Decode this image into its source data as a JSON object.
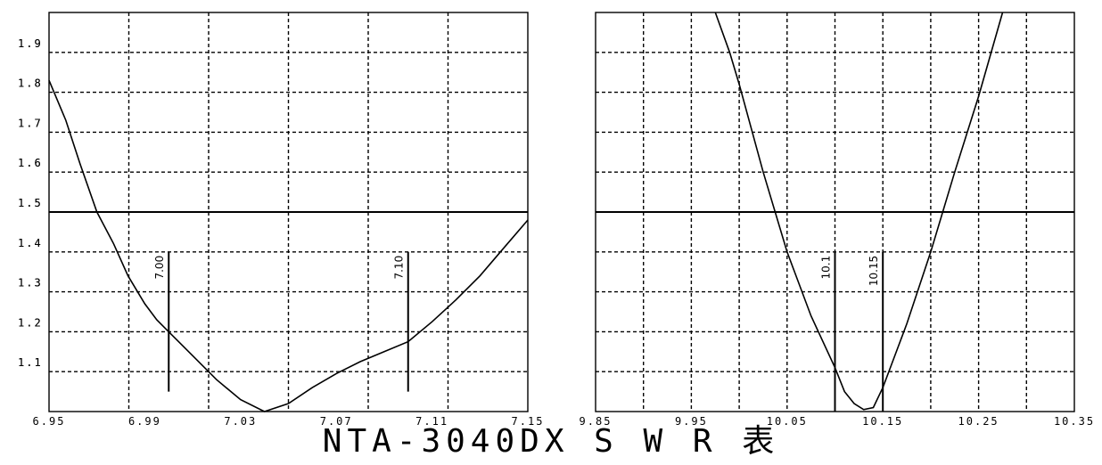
{
  "title": "NTA-3040DX  S W R 表",
  "chart_data": [
    {
      "type": "line",
      "xlim": [
        6.95,
        7.15
      ],
      "ylim": [
        1.0,
        2.0
      ],
      "x_ticks": [
        "6.95",
        "6.99",
        "7.03",
        "7.07",
        "7.11",
        "7.15"
      ],
      "y_ticks": [
        "1.1",
        "1.2",
        "1.3",
        "1.4",
        "1.5",
        "1.6",
        "1.7",
        "1.8",
        "1.9"
      ],
      "y_tick_values": [
        1.1,
        1.2,
        1.3,
        1.4,
        1.5,
        1.6,
        1.7,
        1.8,
        1.9
      ],
      "x_grid_divisions": 6,
      "y_grid_divisions": 9,
      "grid": "dashed",
      "reference_line": 1.5,
      "markers": [
        {
          "label": "7.00",
          "x": 7.0,
          "y_bottom": 1.05,
          "y_top": 1.4
        },
        {
          "label": "7.10",
          "x": 7.1,
          "y_bottom": 1.05,
          "y_top": 1.4
        }
      ],
      "series": [
        {
          "points": [
            [
              6.95,
              1.83
            ],
            [
              6.957,
              1.73
            ],
            [
              6.963,
              1.62
            ],
            [
              6.97,
              1.5
            ],
            [
              6.977,
              1.42
            ],
            [
              6.983,
              1.34
            ],
            [
              6.99,
              1.27
            ],
            [
              6.995,
              1.23
            ],
            [
              7.0,
              1.2
            ],
            [
              7.01,
              1.14
            ],
            [
              7.02,
              1.08
            ],
            [
              7.03,
              1.03
            ],
            [
              7.04,
              1.0
            ],
            [
              7.05,
              1.02
            ],
            [
              7.06,
              1.06
            ],
            [
              7.07,
              1.095
            ],
            [
              7.08,
              1.125
            ],
            [
              7.09,
              1.15
            ],
            [
              7.1,
              1.175
            ],
            [
              7.11,
              1.225
            ],
            [
              7.12,
              1.28
            ],
            [
              7.13,
              1.34
            ],
            [
              7.14,
              1.41
            ],
            [
              7.15,
              1.48
            ]
          ]
        }
      ]
    },
    {
      "type": "line",
      "xlim": [
        9.85,
        10.35
      ],
      "ylim": [
        1.0,
        2.0
      ],
      "x_ticks": [
        "9.85",
        "9.95",
        "10.05",
        "10.15",
        "10.25",
        "10.35"
      ],
      "y_ticks": [
        "1.1",
        "1.2",
        "1.3",
        "1.4",
        "1.5",
        "1.6",
        "1.7",
        "1.8",
        "1.9"
      ],
      "y_tick_values": [
        1.1,
        1.2,
        1.3,
        1.4,
        1.5,
        1.6,
        1.7,
        1.8,
        1.9
      ],
      "x_grid_divisions": 10,
      "y_grid_divisions": 9,
      "grid": "dashed",
      "reference_line": 1.5,
      "markers": [
        {
          "label": "10.1",
          "x": 10.1,
          "y_bottom": 1.0,
          "y_top": 1.4
        },
        {
          "label": "10.15",
          "x": 10.15,
          "y_bottom": 1.0,
          "y_top": 1.4
        }
      ],
      "series": [
        {
          "points": [
            [
              9.975,
              2.0
            ],
            [
              9.99,
              1.9
            ],
            [
              10.0,
              1.82
            ],
            [
              10.025,
              1.6
            ],
            [
              10.05,
              1.4
            ],
            [
              10.075,
              1.24
            ],
            [
              10.1,
              1.11
            ],
            [
              10.11,
              1.05
            ],
            [
              10.12,
              1.02
            ],
            [
              10.13,
              1.005
            ],
            [
              10.14,
              1.01
            ],
            [
              10.15,
              1.06
            ],
            [
              10.175,
              1.22
            ],
            [
              10.2,
              1.4
            ],
            [
              10.225,
              1.6
            ],
            [
              10.25,
              1.79
            ],
            [
              10.275,
              2.0
            ]
          ]
        }
      ]
    }
  ]
}
